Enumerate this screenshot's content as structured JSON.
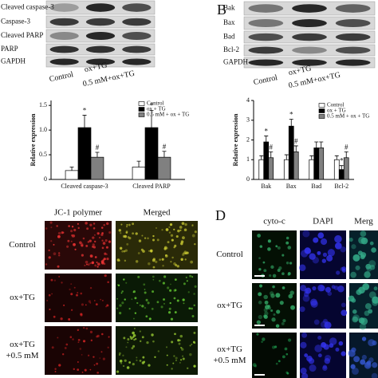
{
  "panels": {
    "a": {
      "blot_labels": [
        "Cleaved caspase-3",
        "Caspase-3",
        "Cleaved PARP",
        "PARP",
        "GAPDH"
      ],
      "lane_labels": [
        "Control",
        "ox+TG",
        "0.5 mM+ox+TG"
      ]
    },
    "b": {
      "letter": "B",
      "blot_labels": [
        "Bak",
        "Bax",
        "Bad",
        "Bcl-2",
        "GAPDH"
      ],
      "lane_labels": [
        "Control",
        "ox+TG",
        "0.5 mM+ox+TG"
      ]
    },
    "c": {
      "column_headers": [
        "JC-1 polymer",
        "Merged"
      ],
      "row_labels": [
        [
          "Control"
        ],
        [
          "ox+TG"
        ],
        [
          "ox+TG",
          "+0.5 mM"
        ]
      ]
    },
    "d": {
      "letter": "D",
      "column_headers": [
        "cyto-c",
        "DAPI",
        "Merg"
      ],
      "row_labels": [
        [
          "Control"
        ],
        [
          "ox+TG"
        ],
        [
          "ox+TG",
          "+0.5 mM"
        ]
      ]
    }
  },
  "chart_data": [
    {
      "type": "bar",
      "y_label": "Relative expression",
      "categories": [
        "Cleaved caspase-3",
        "Cleaved PARP"
      ],
      "series": [
        {
          "name": "Control",
          "color": "#ffffff",
          "values": [
            0.18,
            0.25
          ],
          "errors": [
            0.07,
            0.12
          ],
          "annotations": [
            null,
            null
          ]
        },
        {
          "name": "ox + TG",
          "color": "#000000",
          "values": [
            1.05,
            1.05
          ],
          "errors": [
            0.25,
            0.35
          ],
          "annotations": [
            "*",
            "*"
          ]
        },
        {
          "name": "0.5 mM + ox + TG",
          "color": "#808080",
          "values": [
            0.45,
            0.45
          ],
          "errors": [
            0.1,
            0.12
          ],
          "annotations": [
            "#",
            "#"
          ]
        }
      ],
      "ylim": [
        0,
        1.6
      ],
      "yticks": [
        0,
        0.5,
        {
          "value": 1,
          "label": "1.0"
        },
        1.5
      ],
      "legend": "upper right"
    },
    {
      "type": "bar",
      "y_label": "Relative expression",
      "categories": [
        "Bak",
        "Bax",
        "Bad",
        "Bcl-2"
      ],
      "series": [
        {
          "name": "Control",
          "color": "#ffffff",
          "values": [
            1.0,
            1.0,
            1.0,
            1.0
          ],
          "errors": [
            0.2,
            0.25,
            0.2,
            0.2
          ],
          "annotations": [
            null,
            null,
            null,
            null
          ]
        },
        {
          "name": "ox + TG",
          "color": "#000000",
          "values": [
            1.9,
            2.7,
            1.6,
            0.5
          ],
          "errors": [
            0.3,
            0.35,
            0.3,
            0.2
          ],
          "annotations": [
            "*",
            "*",
            null,
            "*"
          ]
        },
        {
          "name": "0.5 mM + ox + TG",
          "color": "#808080",
          "values": [
            1.1,
            1.4,
            1.6,
            1.1
          ],
          "errors": [
            0.3,
            0.3,
            0.3,
            0.3
          ],
          "annotations": [
            "#",
            "#",
            null,
            "#"
          ]
        }
      ],
      "ylim": [
        0,
        4
      ],
      "yticks": [
        0,
        1,
        2,
        3,
        4
      ],
      "legend": "upper right"
    }
  ]
}
